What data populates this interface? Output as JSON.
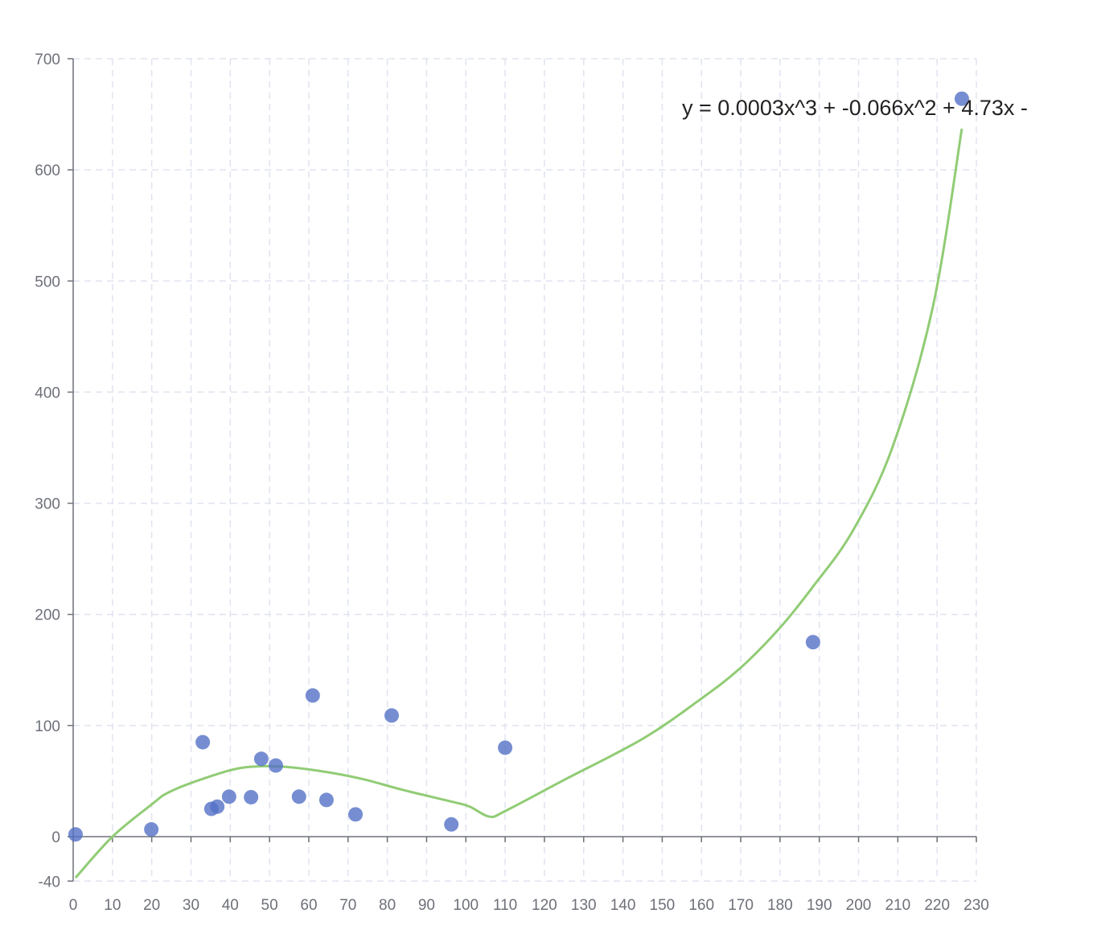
{
  "chart_data": {
    "type": "scatter",
    "title": "",
    "xlabel": "",
    "ylabel": "",
    "xlim": [
      0,
      230
    ],
    "ylim": [
      -40,
      700
    ],
    "x_ticks": [
      "0",
      "10",
      "20",
      "30",
      "40",
      "50",
      "60",
      "70",
      "80",
      "90",
      "100",
      "110",
      "120",
      "130",
      "140",
      "150",
      "160",
      "170",
      "180",
      "190",
      "200",
      "210",
      "220",
      "230"
    ],
    "y_ticks": [
      "-40",
      "0",
      "100",
      "200",
      "300",
      "400",
      "500",
      "600",
      "700"
    ],
    "grid": true,
    "colors": {
      "points": "#5470c6",
      "curve": "#91cc75"
    },
    "points": [
      [
        0.6,
        2
      ],
      [
        19.9,
        6.5
      ],
      [
        33,
        85
      ],
      [
        35.2,
        25
      ],
      [
        36.7,
        27
      ],
      [
        39.7,
        36
      ],
      [
        45.3,
        35.5
      ],
      [
        47.9,
        70
      ],
      [
        51.6,
        64
      ],
      [
        57.5,
        36
      ],
      [
        61,
        127
      ],
      [
        64.5,
        33
      ],
      [
        71.9,
        20
      ],
      [
        81.1,
        109
      ],
      [
        96.3,
        11
      ],
      [
        110,
        80
      ],
      [
        188.4,
        175
      ],
      [
        226.3,
        664
      ]
    ],
    "regression_curve": [
      [
        0.6,
        -37
      ],
      [
        10,
        0
      ],
      [
        20,
        29
      ],
      [
        24.4,
        40
      ],
      [
        33,
        52
      ],
      [
        43,
        62
      ],
      [
        53,
        63
      ],
      [
        63,
        59
      ],
      [
        73.5,
        52
      ],
      [
        84,
        42
      ],
      [
        97,
        31
      ],
      [
        101,
        27
      ],
      [
        106,
        18
      ],
      [
        110,
        23
      ],
      [
        125,
        51
      ],
      [
        145,
        88
      ],
      [
        159.5,
        123
      ],
      [
        170,
        152
      ],
      [
        180,
        188
      ],
      [
        188.4,
        225
      ],
      [
        198.5,
        275
      ],
      [
        208.7,
        351
      ],
      [
        219,
        478
      ],
      [
        226.3,
        637
      ]
    ],
    "annotation": "y = 0.0003x^3 + -0.066x^2 + 4.73x -"
  }
}
